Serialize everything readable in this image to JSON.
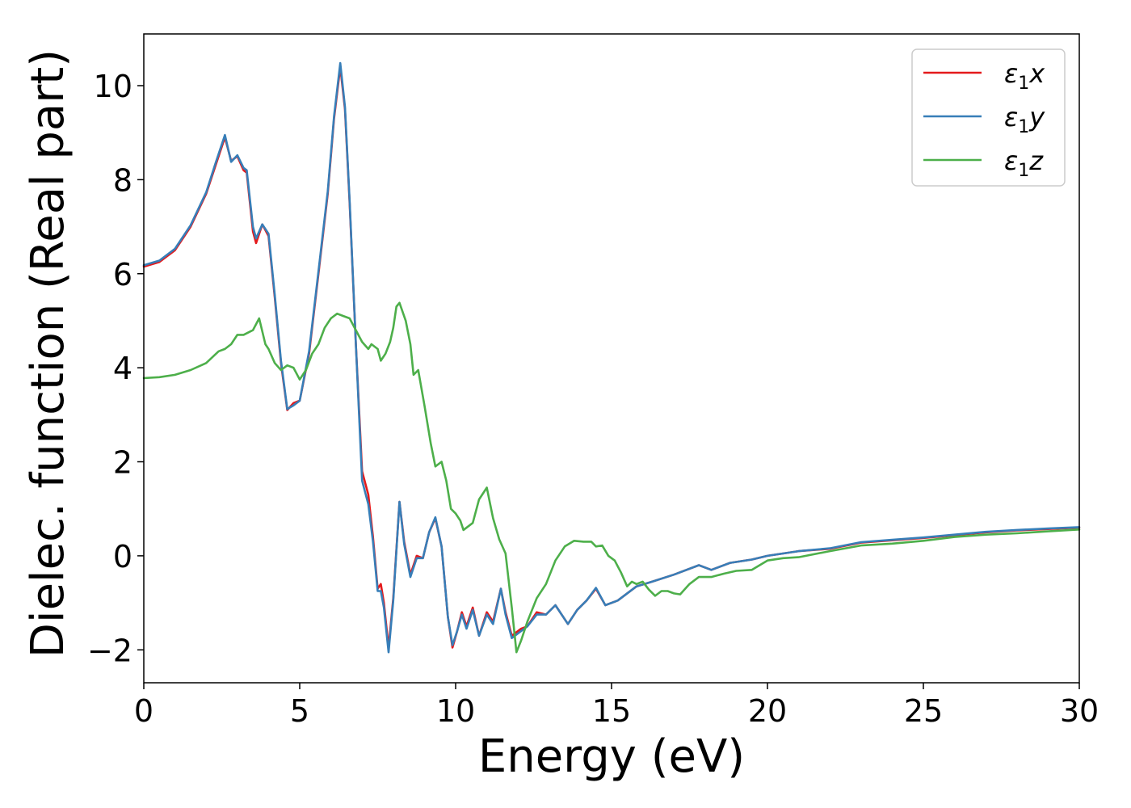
{
  "chart_data": {
    "type": "line",
    "xlabel": "Energy (eV)",
    "ylabel": "Dielec. function (Real part)",
    "xlim": [
      0,
      30
    ],
    "ylim": [
      -2.7,
      11.1
    ],
    "xticks": [
      0,
      5,
      10,
      15,
      20,
      25,
      30
    ],
    "xtick_labels": [
      "0",
      "5",
      "10",
      "15",
      "20",
      "25",
      "30"
    ],
    "yticks": [
      -2,
      0,
      2,
      4,
      6,
      8,
      10
    ],
    "ytick_labels": [
      "−2",
      "0",
      "2",
      "4",
      "6",
      "8",
      "10"
    ],
    "grid": false,
    "legend_position": "top-right",
    "series": [
      {
        "name": "ε",
        "subscript": "1",
        "suffix": "x",
        "color": "#e41a1c",
        "points": [
          [
            0,
            6.15
          ],
          [
            0.5,
            6.25
          ],
          [
            1,
            6.5
          ],
          [
            1.5,
            7.0
          ],
          [
            2,
            7.7
          ],
          [
            2.3,
            8.3
          ],
          [
            2.6,
            8.9
          ],
          [
            2.8,
            8.4
          ],
          [
            3.0,
            8.5
          ],
          [
            3.2,
            8.2
          ],
          [
            3.3,
            8.15
          ],
          [
            3.5,
            6.9
          ],
          [
            3.6,
            6.65
          ],
          [
            3.8,
            7.05
          ],
          [
            4.0,
            6.8
          ],
          [
            4.2,
            5.5
          ],
          [
            4.4,
            4.1
          ],
          [
            4.6,
            3.1
          ],
          [
            4.8,
            3.25
          ],
          [
            5.0,
            3.3
          ],
          [
            5.3,
            4.3
          ],
          [
            5.6,
            6.0
          ],
          [
            5.9,
            7.7
          ],
          [
            6.1,
            9.3
          ],
          [
            6.3,
            10.4
          ],
          [
            6.45,
            9.5
          ],
          [
            6.6,
            7.5
          ],
          [
            6.8,
            4.5
          ],
          [
            7.0,
            1.8
          ],
          [
            7.2,
            1.3
          ],
          [
            7.35,
            0.4
          ],
          [
            7.5,
            -0.7
          ],
          [
            7.6,
            -0.6
          ],
          [
            7.7,
            -1.0
          ],
          [
            7.85,
            -1.95
          ],
          [
            8.0,
            -0.9
          ],
          [
            8.2,
            1.15
          ],
          [
            8.35,
            0.3
          ],
          [
            8.55,
            -0.4
          ],
          [
            8.75,
            0.0
          ],
          [
            8.95,
            -0.05
          ],
          [
            9.15,
            0.5
          ],
          [
            9.35,
            0.8
          ],
          [
            9.55,
            0.2
          ],
          [
            9.75,
            -1.3
          ],
          [
            9.9,
            -1.95
          ],
          [
            10.05,
            -1.6
          ],
          [
            10.2,
            -1.2
          ],
          [
            10.35,
            -1.5
          ],
          [
            10.55,
            -1.1
          ],
          [
            10.75,
            -1.7
          ],
          [
            11.0,
            -1.2
          ],
          [
            11.2,
            -1.4
          ],
          [
            11.45,
            -0.7
          ],
          [
            11.6,
            -1.2
          ],
          [
            11.8,
            -1.7
          ],
          [
            12.1,
            -1.55
          ],
          [
            12.3,
            -1.5
          ],
          [
            12.6,
            -1.2
          ],
          [
            12.9,
            -1.25
          ],
          [
            13.2,
            -1.05
          ],
          [
            13.6,
            -1.45
          ],
          [
            13.9,
            -1.15
          ],
          [
            14.2,
            -0.95
          ],
          [
            14.5,
            -0.7
          ],
          [
            14.8,
            -1.05
          ],
          [
            15.2,
            -0.95
          ],
          [
            15.8,
            -0.65
          ],
          [
            16.3,
            -0.55
          ],
          [
            17.0,
            -0.4
          ],
          [
            17.8,
            -0.2
          ],
          [
            18.2,
            -0.3
          ],
          [
            18.8,
            -0.15
          ],
          [
            19.5,
            -0.08
          ],
          [
            20,
            0.0
          ],
          [
            21,
            0.1
          ],
          [
            22,
            0.15
          ],
          [
            23,
            0.28
          ],
          [
            24,
            0.33
          ],
          [
            25,
            0.38
          ],
          [
            26,
            0.44
          ],
          [
            27,
            0.5
          ],
          [
            28,
            0.54
          ],
          [
            29,
            0.57
          ],
          [
            30,
            0.6
          ]
        ]
      },
      {
        "name": "ε",
        "subscript": "1",
        "suffix": "y",
        "color": "#377eb8",
        "points": [
          [
            0,
            6.18
          ],
          [
            0.5,
            6.28
          ],
          [
            1,
            6.53
          ],
          [
            1.5,
            7.03
          ],
          [
            2,
            7.73
          ],
          [
            2.3,
            8.35
          ],
          [
            2.6,
            8.95
          ],
          [
            2.8,
            8.38
          ],
          [
            3.0,
            8.52
          ],
          [
            3.2,
            8.25
          ],
          [
            3.3,
            8.2
          ],
          [
            3.5,
            7.0
          ],
          [
            3.6,
            6.75
          ],
          [
            3.8,
            7.05
          ],
          [
            4.0,
            6.85
          ],
          [
            4.2,
            5.55
          ],
          [
            4.4,
            4.15
          ],
          [
            4.6,
            3.12
          ],
          [
            4.8,
            3.2
          ],
          [
            5.0,
            3.3
          ],
          [
            5.3,
            4.35
          ],
          [
            5.6,
            6.05
          ],
          [
            5.9,
            7.75
          ],
          [
            6.1,
            9.35
          ],
          [
            6.3,
            10.48
          ],
          [
            6.45,
            9.55
          ],
          [
            6.6,
            7.55
          ],
          [
            6.8,
            4.5
          ],
          [
            7.0,
            1.6
          ],
          [
            7.2,
            1.1
          ],
          [
            7.35,
            0.3
          ],
          [
            7.5,
            -0.75
          ],
          [
            7.6,
            -0.75
          ],
          [
            7.7,
            -1.1
          ],
          [
            7.85,
            -2.05
          ],
          [
            8.0,
            -0.95
          ],
          [
            8.2,
            1.15
          ],
          [
            8.35,
            0.25
          ],
          [
            8.55,
            -0.45
          ],
          [
            8.75,
            -0.05
          ],
          [
            8.95,
            -0.05
          ],
          [
            9.15,
            0.5
          ],
          [
            9.35,
            0.82
          ],
          [
            9.55,
            0.2
          ],
          [
            9.75,
            -1.3
          ],
          [
            9.9,
            -1.9
          ],
          [
            10.05,
            -1.6
          ],
          [
            10.2,
            -1.25
          ],
          [
            10.35,
            -1.55
          ],
          [
            10.55,
            -1.15
          ],
          [
            10.75,
            -1.7
          ],
          [
            11.0,
            -1.25
          ],
          [
            11.2,
            -1.45
          ],
          [
            11.45,
            -0.7
          ],
          [
            11.6,
            -1.25
          ],
          [
            11.8,
            -1.75
          ],
          [
            12.1,
            -1.6
          ],
          [
            12.3,
            -1.5
          ],
          [
            12.6,
            -1.25
          ],
          [
            12.9,
            -1.25
          ],
          [
            13.2,
            -1.05
          ],
          [
            13.6,
            -1.45
          ],
          [
            13.9,
            -1.15
          ],
          [
            14.2,
            -0.95
          ],
          [
            14.5,
            -0.68
          ],
          [
            14.8,
            -1.05
          ],
          [
            15.2,
            -0.95
          ],
          [
            15.8,
            -0.65
          ],
          [
            16.3,
            -0.55
          ],
          [
            17.0,
            -0.4
          ],
          [
            17.8,
            -0.2
          ],
          [
            18.2,
            -0.3
          ],
          [
            18.8,
            -0.15
          ],
          [
            19.5,
            -0.08
          ],
          [
            20,
            0.0
          ],
          [
            21,
            0.1
          ],
          [
            22,
            0.16
          ],
          [
            23,
            0.29
          ],
          [
            24,
            0.34
          ],
          [
            25,
            0.39
          ],
          [
            26,
            0.45
          ],
          [
            27,
            0.51
          ],
          [
            28,
            0.55
          ],
          [
            29,
            0.58
          ],
          [
            30,
            0.61
          ]
        ]
      },
      {
        "name": "ε",
        "subscript": "1",
        "suffix": "z",
        "color": "#4daf4a",
        "points": [
          [
            0,
            3.78
          ],
          [
            0.5,
            3.8
          ],
          [
            1,
            3.85
          ],
          [
            1.5,
            3.95
          ],
          [
            2,
            4.1
          ],
          [
            2.4,
            4.35
          ],
          [
            2.6,
            4.4
          ],
          [
            2.8,
            4.5
          ],
          [
            3.0,
            4.7
          ],
          [
            3.2,
            4.7
          ],
          [
            3.5,
            4.8
          ],
          [
            3.7,
            5.05
          ],
          [
            3.9,
            4.5
          ],
          [
            4.0,
            4.4
          ],
          [
            4.2,
            4.1
          ],
          [
            4.4,
            3.95
          ],
          [
            4.6,
            4.05
          ],
          [
            4.8,
            4.0
          ],
          [
            5.0,
            3.75
          ],
          [
            5.2,
            3.95
          ],
          [
            5.4,
            4.3
          ],
          [
            5.6,
            4.5
          ],
          [
            5.8,
            4.85
          ],
          [
            6.0,
            5.05
          ],
          [
            6.2,
            5.15
          ],
          [
            6.4,
            5.1
          ],
          [
            6.6,
            5.05
          ],
          [
            6.8,
            4.8
          ],
          [
            7.0,
            4.55
          ],
          [
            7.2,
            4.4
          ],
          [
            7.3,
            4.5
          ],
          [
            7.5,
            4.4
          ],
          [
            7.6,
            4.15
          ],
          [
            7.75,
            4.3
          ],
          [
            7.9,
            4.55
          ],
          [
            8.0,
            4.85
          ],
          [
            8.1,
            5.3
          ],
          [
            8.2,
            5.38
          ],
          [
            8.4,
            5.0
          ],
          [
            8.55,
            4.5
          ],
          [
            8.65,
            3.85
          ],
          [
            8.8,
            3.95
          ],
          [
            9.0,
            3.2
          ],
          [
            9.2,
            2.4
          ],
          [
            9.35,
            1.9
          ],
          [
            9.55,
            2.0
          ],
          [
            9.7,
            1.6
          ],
          [
            9.85,
            1.0
          ],
          [
            10.0,
            0.9
          ],
          [
            10.15,
            0.75
          ],
          [
            10.25,
            0.55
          ],
          [
            10.45,
            0.65
          ],
          [
            10.55,
            0.7
          ],
          [
            10.75,
            1.2
          ],
          [
            11.0,
            1.45
          ],
          [
            11.2,
            0.8
          ],
          [
            11.4,
            0.35
          ],
          [
            11.6,
            0.05
          ],
          [
            11.8,
            -1.1
          ],
          [
            11.95,
            -2.05
          ],
          [
            12.1,
            -1.8
          ],
          [
            12.3,
            -1.4
          ],
          [
            12.6,
            -0.9
          ],
          [
            12.9,
            -0.6
          ],
          [
            13.2,
            -0.1
          ],
          [
            13.5,
            0.2
          ],
          [
            13.8,
            0.32
          ],
          [
            14.1,
            0.3
          ],
          [
            14.35,
            0.3
          ],
          [
            14.5,
            0.2
          ],
          [
            14.7,
            0.22
          ],
          [
            14.9,
            0.0
          ],
          [
            15.1,
            -0.1
          ],
          [
            15.3,
            -0.35
          ],
          [
            15.5,
            -0.65
          ],
          [
            15.65,
            -0.55
          ],
          [
            15.8,
            -0.6
          ],
          [
            16.0,
            -0.55
          ],
          [
            16.2,
            -0.72
          ],
          [
            16.4,
            -0.85
          ],
          [
            16.6,
            -0.75
          ],
          [
            16.8,
            -0.75
          ],
          [
            17.0,
            -0.8
          ],
          [
            17.2,
            -0.82
          ],
          [
            17.5,
            -0.6
          ],
          [
            17.8,
            -0.45
          ],
          [
            18.2,
            -0.45
          ],
          [
            18.6,
            -0.38
          ],
          [
            19.0,
            -0.32
          ],
          [
            19.5,
            -0.3
          ],
          [
            20,
            -0.1
          ],
          [
            20.5,
            -0.05
          ],
          [
            21,
            -0.03
          ],
          [
            22,
            0.1
          ],
          [
            23,
            0.22
          ],
          [
            24,
            0.26
          ],
          [
            25,
            0.32
          ],
          [
            26,
            0.4
          ],
          [
            27,
            0.45
          ],
          [
            28,
            0.48
          ],
          [
            29,
            0.52
          ],
          [
            30,
            0.56
          ]
        ]
      }
    ]
  }
}
